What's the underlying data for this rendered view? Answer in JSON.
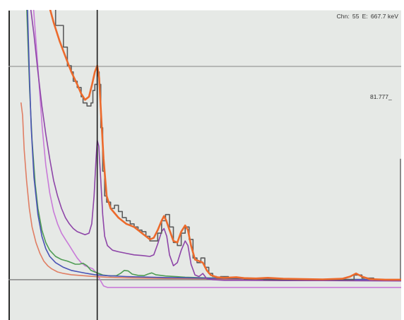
{
  "cursor_readout": {
    "channel_label": "Chn:",
    "channel_value": "55",
    "energy_label": "E:",
    "energy_value": "667.7 keV"
  },
  "level_label": "81.777_",
  "chart_data": {
    "type": "line",
    "title": "",
    "xlabel": "",
    "ylabel": "",
    "xlim": [
      0,
      100
    ],
    "ylim": [
      0,
      100
    ],
    "cursor_x": 22.6,
    "level_y": 81.777,
    "baseline_y": 13,
    "grid": false,
    "series": [
      {
        "color": "#5c5c5c",
        "style": "step",
        "values": [
          [
            10.5,
            102
          ],
          [
            12,
            95
          ],
          [
            14,
            88
          ],
          [
            15,
            82
          ],
          [
            16,
            80
          ],
          [
            16.5,
            77
          ],
          [
            17.5,
            75
          ],
          [
            18.5,
            72
          ],
          [
            19,
            70
          ],
          [
            20,
            69
          ],
          [
            21,
            70
          ],
          [
            21.5,
            74
          ],
          [
            22,
            76
          ],
          [
            22.6,
            80
          ],
          [
            23.1,
            76
          ],
          [
            23.5,
            62
          ],
          [
            24,
            48
          ],
          [
            24.5,
            40
          ],
          [
            25,
            38
          ],
          [
            26,
            36
          ],
          [
            27,
            37
          ],
          [
            28,
            35
          ],
          [
            29,
            33
          ],
          [
            30,
            32
          ],
          [
            31,
            31
          ],
          [
            32,
            30
          ],
          [
            33,
            29
          ],
          [
            34,
            28.5
          ],
          [
            35,
            27
          ],
          [
            36,
            25.5
          ],
          [
            37,
            25.5
          ],
          [
            38,
            28
          ],
          [
            39,
            32
          ],
          [
            40,
            34
          ],
          [
            41,
            30
          ],
          [
            42,
            25
          ],
          [
            43,
            24
          ],
          [
            44,
            28
          ],
          [
            45,
            30
          ],
          [
            46,
            26
          ],
          [
            47,
            20
          ],
          [
            48,
            18.5
          ],
          [
            49,
            20
          ],
          [
            50,
            17
          ],
          [
            51,
            15
          ],
          [
            52,
            14
          ],
          [
            53,
            13.5
          ],
          [
            54,
            14
          ],
          [
            56,
            13.5
          ],
          [
            60,
            13.2
          ],
          [
            65,
            13
          ],
          [
            70,
            13
          ],
          [
            75,
            13
          ],
          [
            80,
            13
          ],
          [
            85,
            13
          ],
          [
            88,
            14.5
          ],
          [
            90,
            13.5
          ],
          [
            93,
            13
          ],
          [
            100,
            12.8
          ]
        ]
      },
      {
        "color": "#ec6a2c",
        "style": "line",
        "values": [
          [
            10.2,
            102
          ],
          [
            11.5,
            96
          ],
          [
            13,
            90
          ],
          [
            14.5,
            85
          ],
          [
            16,
            80
          ],
          [
            17.5,
            76
          ],
          [
            18.5,
            73
          ],
          [
            19.5,
            71
          ],
          [
            20.5,
            72
          ],
          [
            21.3,
            76
          ],
          [
            22,
            80
          ],
          [
            22.6,
            82
          ],
          [
            23.1,
            78
          ],
          [
            23.6,
            66
          ],
          [
            24.2,
            52
          ],
          [
            25,
            40
          ],
          [
            26,
            36
          ],
          [
            27,
            34.5
          ],
          [
            28,
            33
          ],
          [
            29,
            32
          ],
          [
            30,
            31
          ],
          [
            31,
            30.5
          ],
          [
            32,
            30
          ],
          [
            33,
            29
          ],
          [
            34,
            28
          ],
          [
            35,
            27
          ],
          [
            36,
            26
          ],
          [
            37,
            26.5
          ],
          [
            38,
            29
          ],
          [
            39,
            32
          ],
          [
            39.6,
            33.5
          ],
          [
            40.2,
            32
          ],
          [
            41,
            29
          ],
          [
            42,
            25.5
          ],
          [
            43,
            25
          ],
          [
            44,
            28.5
          ],
          [
            45,
            30.5
          ],
          [
            45.7,
            29
          ],
          [
            46.5,
            24
          ],
          [
            47.5,
            19.5
          ],
          [
            48.5,
            19
          ],
          [
            49.5,
            18.5
          ],
          [
            50.5,
            16
          ],
          [
            51.5,
            14.5
          ],
          [
            53,
            13.8
          ],
          [
            55,
            13.6
          ],
          [
            58,
            13.8
          ],
          [
            60,
            13.5
          ],
          [
            63,
            13.4
          ],
          [
            66,
            13.6
          ],
          [
            70,
            13.3
          ],
          [
            75,
            13.2
          ],
          [
            80,
            13.1
          ],
          [
            85,
            13.3
          ],
          [
            87,
            14
          ],
          [
            88.5,
            15
          ],
          [
            90,
            14
          ],
          [
            92,
            13.2
          ],
          [
            96,
            13
          ],
          [
            100,
            13
          ]
        ]
      },
      {
        "color": "#8e45a8",
        "style": "line",
        "values": [
          [
            5.5,
            102
          ],
          [
            6.5,
            92
          ],
          [
            7.5,
            80
          ],
          [
            8.5,
            69
          ],
          [
            9.5,
            60
          ],
          [
            10.5,
            52
          ],
          [
            11.5,
            45
          ],
          [
            12.5,
            40
          ],
          [
            13.5,
            36
          ],
          [
            14.5,
            33
          ],
          [
            15.5,
            31
          ],
          [
            16.5,
            29.5
          ],
          [
            17.5,
            28.5
          ],
          [
            18.5,
            28
          ],
          [
            19.5,
            27.5
          ],
          [
            20.5,
            28
          ],
          [
            21.2,
            31
          ],
          [
            21.8,
            40
          ],
          [
            22.3,
            52
          ],
          [
            22.6,
            58
          ],
          [
            23,
            56
          ],
          [
            23.5,
            45
          ],
          [
            24,
            34
          ],
          [
            24.5,
            27
          ],
          [
            25.2,
            24
          ],
          [
            26.5,
            22.5
          ],
          [
            28,
            22
          ],
          [
            30,
            21.5
          ],
          [
            32,
            21
          ],
          [
            34,
            20.8
          ],
          [
            36,
            20.5
          ],
          [
            37,
            21
          ],
          [
            38,
            24.5
          ],
          [
            39,
            28.5
          ],
          [
            39.6,
            29.5
          ],
          [
            40.3,
            27
          ],
          [
            41,
            21
          ],
          [
            42,
            17.5
          ],
          [
            43,
            18.5
          ],
          [
            44,
            22.5
          ],
          [
            45,
            25.5
          ],
          [
            45.7,
            24
          ],
          [
            46.5,
            18
          ],
          [
            47.5,
            14.5
          ],
          [
            48.5,
            14
          ],
          [
            49.5,
            15
          ],
          [
            50.5,
            13.3
          ],
          [
            52,
            13
          ],
          [
            55,
            12.8
          ],
          [
            60,
            12.8
          ],
          [
            70,
            12.7
          ],
          [
            80,
            12.7
          ],
          [
            100,
            12.6
          ]
        ]
      },
      {
        "color": "#4a52b5",
        "style": "line",
        "values": [
          [
            4.8,
            102
          ],
          [
            5.3,
            80
          ],
          [
            5.8,
            62
          ],
          [
            6.5,
            46
          ],
          [
            7.5,
            34
          ],
          [
            8.5,
            27
          ],
          [
            9.5,
            23
          ],
          [
            10.5,
            20.5
          ],
          [
            12,
            18.5
          ],
          [
            14,
            17
          ],
          [
            16,
            16
          ],
          [
            18,
            15.5
          ],
          [
            20,
            15
          ],
          [
            22,
            14.6
          ],
          [
            25,
            14.3
          ],
          [
            30,
            14
          ],
          [
            40,
            13.7
          ],
          [
            50,
            13.5
          ],
          [
            60,
            13.3
          ],
          [
            70,
            13.2
          ],
          [
            80,
            13.1
          ],
          [
            100,
            13
          ]
        ]
      },
      {
        "color": "#4f9c54",
        "style": "line",
        "values": [
          [
            4.6,
            102
          ],
          [
            5,
            88
          ],
          [
            5.4,
            74
          ],
          [
            6,
            58
          ],
          [
            6.8,
            44
          ],
          [
            7.5,
            36
          ],
          [
            8.5,
            29
          ],
          [
            9.5,
            25
          ],
          [
            10.5,
            22.5
          ],
          [
            12,
            20.5
          ],
          [
            13.5,
            19.5
          ],
          [
            15,
            19
          ],
          [
            16,
            18.5
          ],
          [
            17,
            18
          ],
          [
            18,
            18
          ],
          [
            19,
            18.3
          ],
          [
            20,
            17.5
          ],
          [
            21,
            16
          ],
          [
            22,
            15.5
          ],
          [
            23,
            15
          ],
          [
            24,
            14.5
          ],
          [
            26,
            14.2
          ],
          [
            27.5,
            14.3
          ],
          [
            28.5,
            15
          ],
          [
            29.5,
            16
          ],
          [
            30.5,
            15.8
          ],
          [
            31.5,
            14.8
          ],
          [
            33,
            14.4
          ],
          [
            34.5,
            14.3
          ],
          [
            35.5,
            14.8
          ],
          [
            36.5,
            15.2
          ],
          [
            37.5,
            14.6
          ],
          [
            40,
            14.2
          ],
          [
            45,
            13.8
          ],
          [
            50,
            13.6
          ],
          [
            60,
            13.4
          ],
          [
            70,
            13.2
          ],
          [
            80,
            13.1
          ],
          [
            100,
            13
          ]
        ]
      },
      {
        "color": "#e07e64",
        "style": "line",
        "values": [
          [
            3.2,
            70
          ],
          [
            3.6,
            66
          ],
          [
            4,
            55
          ],
          [
            4.6,
            45
          ],
          [
            5.3,
            36
          ],
          [
            6,
            30
          ],
          [
            7,
            25
          ],
          [
            8,
            21.5
          ],
          [
            9,
            19
          ],
          [
            10,
            17.5
          ],
          [
            11,
            16.5
          ],
          [
            12.5,
            15.5
          ],
          [
            14,
            15
          ],
          [
            16,
            14.6
          ],
          [
            18,
            14.4
          ],
          [
            20,
            14.2
          ],
          [
            22,
            14
          ],
          [
            25,
            13.8
          ],
          [
            30,
            13.6
          ],
          [
            40,
            13.4
          ],
          [
            50,
            13.3
          ],
          [
            60,
            13.2
          ],
          [
            80,
            13.1
          ],
          [
            100,
            13
          ]
        ]
      },
      {
        "color": "#c87ad8",
        "style": "line",
        "values": [
          [
            6.3,
            102
          ],
          [
            7,
            90
          ],
          [
            7.8,
            76
          ],
          [
            8.6,
            62
          ],
          [
            9.5,
            50
          ],
          [
            10.5,
            41
          ],
          [
            11.5,
            35
          ],
          [
            12.5,
            31
          ],
          [
            13.5,
            28
          ],
          [
            14.5,
            26
          ],
          [
            15.5,
            24
          ],
          [
            16.5,
            22
          ],
          [
            17.5,
            20
          ],
          [
            18.5,
            18.5
          ],
          [
            19.5,
            17.5
          ],
          [
            20.5,
            17
          ],
          [
            21.5,
            16.5
          ],
          [
            22.5,
            15
          ],
          [
            23.3,
            13
          ],
          [
            24.2,
            11
          ],
          [
            25.2,
            10.5
          ],
          [
            100,
            10.5
          ]
        ]
      }
    ]
  }
}
